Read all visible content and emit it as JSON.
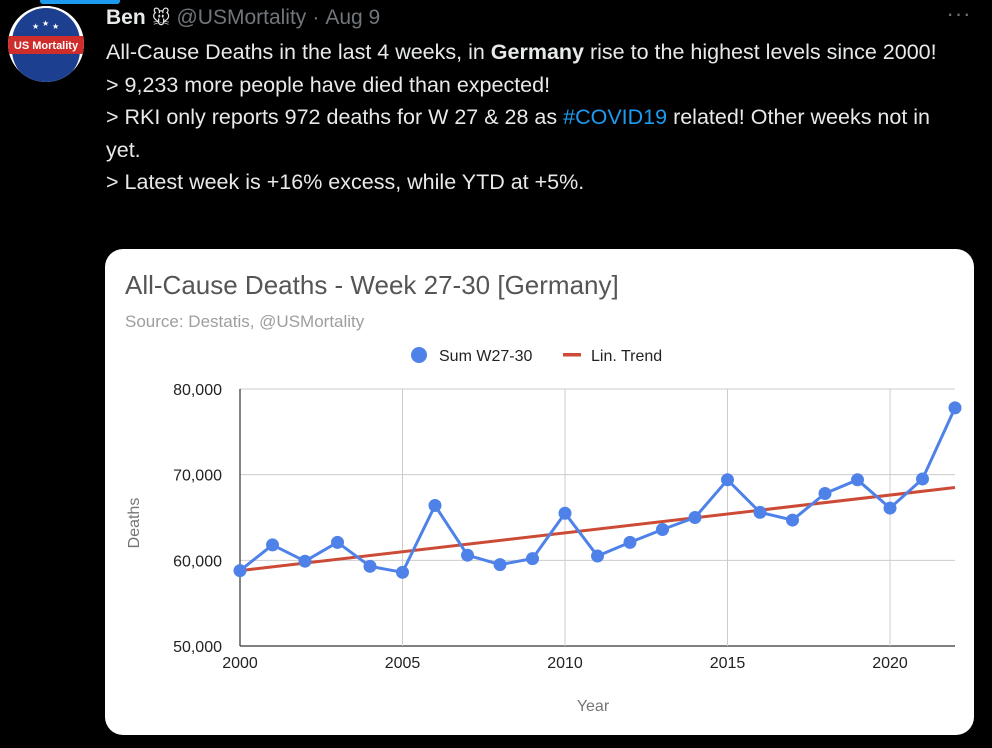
{
  "tweet": {
    "author_name": "Ben",
    "name_emoji": "🐭",
    "handle": "@USMortality",
    "separator": "·",
    "date": "Aug 9",
    "more": "···",
    "avatar_text": "US Mortality",
    "line1_pre": "All-Cause Deaths in the last 4 weeks, in ",
    "line1_bold": "Germany",
    "line1_post": " rise to the highest levels since 2000!",
    "line2": "> 9,233 more people have died than expected!",
    "line3_pre": "> RKI only reports 972 deaths for W 27 & 28 as ",
    "line3_hashtag": "#COVID19",
    "line3_post": " related! Other weeks not in yet.",
    "line4": "> Latest week is +16% excess, while YTD at +5%."
  },
  "colors": {
    "background": "#000000",
    "hashtag": "#1d9bf0",
    "series": "#4f82e8",
    "trend": "#cc4b37"
  },
  "chart_data": {
    "type": "line",
    "title": "All-Cause Deaths - Week 27-30 [Germany]",
    "subtitle": "Source: Destatis, @USMortality",
    "xlabel": "Year",
    "ylabel": "Deaths",
    "ylim": [
      50000,
      80000
    ],
    "xlim": [
      2000,
      2022
    ],
    "y_ticks": [
      50000,
      60000,
      70000,
      80000
    ],
    "y_tick_labels": [
      "50,000",
      "60,000",
      "70,000",
      "80,000"
    ],
    "x_ticks": [
      2000,
      2005,
      2010,
      2015,
      2020
    ],
    "x_tick_labels": [
      "2000",
      "2005",
      "2010",
      "2015",
      "2020"
    ],
    "grid": true,
    "legend_position": "top",
    "x": [
      2000,
      2001,
      2002,
      2003,
      2004,
      2005,
      2006,
      2007,
      2008,
      2009,
      2010,
      2011,
      2012,
      2013,
      2014,
      2015,
      2016,
      2017,
      2018,
      2019,
      2020,
      2021,
      2022
    ],
    "series": [
      {
        "name": "Sum W27-30",
        "kind": "line-markers",
        "values": [
          58800,
          61800,
          59900,
          62100,
          59300,
          58600,
          66400,
          60600,
          59500,
          60200,
          65500,
          60500,
          62100,
          63600,
          65000,
          69400,
          65600,
          64700,
          67800,
          69400,
          66100,
          69500,
          77800
        ]
      },
      {
        "name": "Lin. Trend",
        "kind": "line",
        "x": [
          2000,
          2022
        ],
        "values": [
          58800,
          68500
        ]
      }
    ]
  }
}
